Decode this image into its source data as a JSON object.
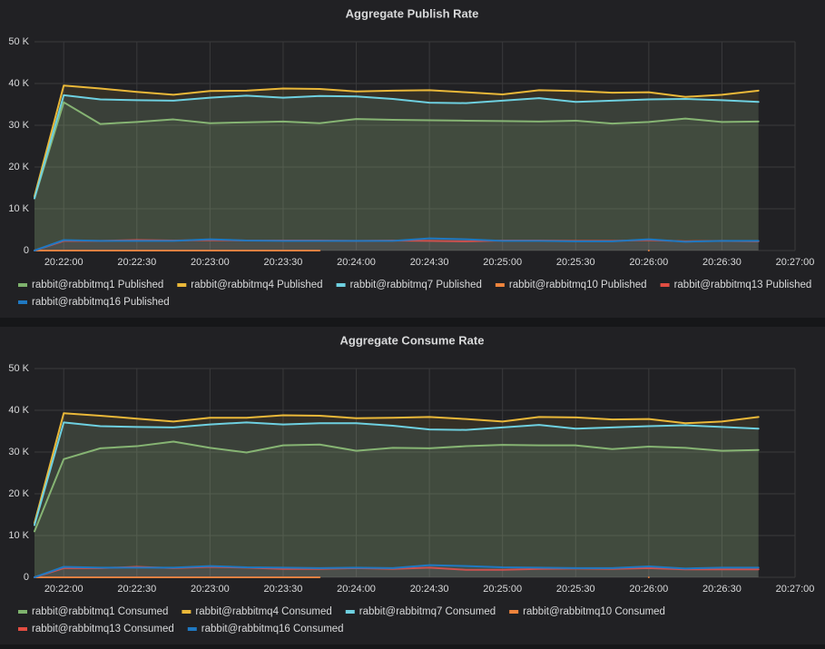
{
  "chart_data": [
    {
      "type": "line",
      "title": "Aggregate Publish Rate",
      "x": [
        "20:21:48",
        "20:22:00",
        "20:22:15",
        "20:22:30",
        "20:22:45",
        "20:23:00",
        "20:23:15",
        "20:23:30",
        "20:23:45",
        "20:24:00",
        "20:24:15",
        "20:24:30",
        "20:24:45",
        "20:25:00",
        "20:25:15",
        "20:25:30",
        "20:25:45",
        "20:26:00",
        "20:26:15",
        "20:26:30",
        "20:26:45"
      ],
      "xlim": [
        "20:21:48",
        "20:27:00"
      ],
      "xticks": [
        "20:22:00",
        "20:22:30",
        "20:23:00",
        "20:23:30",
        "20:24:00",
        "20:24:30",
        "20:25:00",
        "20:25:30",
        "20:26:00",
        "20:26:30",
        "20:27:00"
      ],
      "ylim": [
        0,
        50000
      ],
      "yticks": [
        0,
        {
          "value": 10000,
          "label": "10 K"
        },
        {
          "value": 20000,
          "label": "20 K"
        },
        {
          "value": 30000,
          "label": "30 K"
        },
        {
          "value": 40000,
          "label": "40 K"
        },
        {
          "value": 50000,
          "label": "50 K"
        }
      ],
      "grid": true,
      "legend": "bottom",
      "series": [
        {
          "name": "rabbit@rabbitmq1 Published",
          "color": "#7eb26d",
          "values": [
            12500,
            35500,
            30300,
            30800,
            31400,
            30500,
            30700,
            30900,
            30500,
            31500,
            31300,
            31200,
            31100,
            31000,
            30900,
            31100,
            30400,
            30800,
            31600,
            30800,
            30900
          ]
        },
        {
          "name": "rabbit@rabbitmq4 Published",
          "color": "#eab839",
          "values": [
            13000,
            39500,
            38800,
            38000,
            37300,
            38200,
            38300,
            38800,
            38700,
            38100,
            38300,
            38400,
            37900,
            37400,
            38400,
            38200,
            37800,
            37900,
            36800,
            37300,
            38300
          ]
        },
        {
          "name": "rabbit@rabbitmq7 Published",
          "color": "#6ed0e0",
          "values": [
            12500,
            37200,
            36200,
            36000,
            35900,
            36600,
            37100,
            36600,
            37000,
            36900,
            36300,
            35400,
            35300,
            35900,
            36500,
            35600,
            35900,
            36200,
            36300,
            36000,
            35600
          ]
        },
        {
          "name": "rabbit@rabbitmq10 Published",
          "color": "#ef843c",
          "values": [
            0,
            0,
            0,
            0,
            0,
            0,
            0,
            0,
            0,
            null,
            null,
            null,
            null,
            null,
            null,
            null,
            null,
            0,
            null,
            null,
            null
          ]
        },
        {
          "name": "rabbit@rabbitmq13 Published",
          "color": "#e24d42",
          "values": [
            0,
            2300,
            2300,
            2500,
            2400,
            2500,
            2400,
            2400,
            2400,
            2300,
            2400,
            2300,
            2200,
            2400,
            2400,
            2300,
            2300,
            2500,
            2200,
            2300,
            2200
          ]
        },
        {
          "name": "rabbit@rabbitmq16 Published",
          "color": "#1f78c1",
          "values": [
            0,
            2500,
            2300,
            2300,
            2300,
            2700,
            2400,
            2300,
            2300,
            2300,
            2300,
            2900,
            2700,
            2300,
            2300,
            2200,
            2200,
            2700,
            2100,
            2300,
            2300
          ]
        }
      ]
    },
    {
      "type": "line",
      "title": "Aggregate Consume Rate",
      "x": [
        "20:21:48",
        "20:22:00",
        "20:22:15",
        "20:22:30",
        "20:22:45",
        "20:23:00",
        "20:23:15",
        "20:23:30",
        "20:23:45",
        "20:24:00",
        "20:24:15",
        "20:24:30",
        "20:24:45",
        "20:25:00",
        "20:25:15",
        "20:25:30",
        "20:25:45",
        "20:26:00",
        "20:26:15",
        "20:26:30",
        "20:26:45"
      ],
      "xlim": [
        "20:21:48",
        "20:27:00"
      ],
      "xticks": [
        "20:22:00",
        "20:22:30",
        "20:23:00",
        "20:23:30",
        "20:24:00",
        "20:24:30",
        "20:25:00",
        "20:25:30",
        "20:26:00",
        "20:26:30",
        "20:27:00"
      ],
      "ylim": [
        0,
        50000
      ],
      "yticks": [
        0,
        {
          "value": 10000,
          "label": "10 K"
        },
        {
          "value": 20000,
          "label": "20 K"
        },
        {
          "value": 30000,
          "label": "30 K"
        },
        {
          "value": 40000,
          "label": "40 K"
        },
        {
          "value": 50000,
          "label": "50 K"
        }
      ],
      "grid": true,
      "legend": "bottom",
      "series": [
        {
          "name": "rabbit@rabbitmq1 Consumed",
          "color": "#7eb26d",
          "values": [
            11000,
            28300,
            30900,
            31400,
            32500,
            31000,
            29900,
            31600,
            31800,
            30300,
            31000,
            30900,
            31400,
            31700,
            31600,
            31600,
            30700,
            31300,
            31000,
            30300,
            30500
          ]
        },
        {
          "name": "rabbit@rabbitmq4 Consumed",
          "color": "#eab839",
          "values": [
            13000,
            39300,
            38700,
            38000,
            37300,
            38200,
            38200,
            38800,
            38700,
            38100,
            38200,
            38400,
            37900,
            37300,
            38400,
            38300,
            37800,
            37900,
            36900,
            37300,
            38400
          ]
        },
        {
          "name": "rabbit@rabbitmq7 Consumed",
          "color": "#6ed0e0",
          "values": [
            12500,
            37100,
            36200,
            36000,
            35900,
            36600,
            37100,
            36600,
            36900,
            36900,
            36300,
            35400,
            35300,
            35900,
            36500,
            35600,
            35900,
            36200,
            36400,
            36000,
            35600
          ]
        },
        {
          "name": "rabbit@rabbitmq10 Consumed",
          "color": "#ef843c",
          "values": [
            0,
            0,
            0,
            0,
            0,
            0,
            0,
            0,
            0,
            null,
            null,
            null,
            null,
            null,
            null,
            null,
            null,
            0,
            null,
            null,
            null
          ]
        },
        {
          "name": "rabbit@rabbitmq13 Consumed",
          "color": "#e24d42",
          "values": [
            0,
            2200,
            2200,
            2500,
            2200,
            2500,
            2300,
            2000,
            2000,
            2200,
            2000,
            2300,
            1800,
            1800,
            2000,
            2100,
            2000,
            2200,
            1900,
            1900,
            1900
          ]
        },
        {
          "name": "rabbit@rabbitmq16 Consumed",
          "color": "#1f78c1",
          "values": [
            0,
            2500,
            2300,
            2300,
            2300,
            2700,
            2400,
            2300,
            2200,
            2300,
            2200,
            2900,
            2700,
            2400,
            2300,
            2200,
            2200,
            2600,
            2100,
            2300,
            2300
          ]
        }
      ]
    }
  ]
}
